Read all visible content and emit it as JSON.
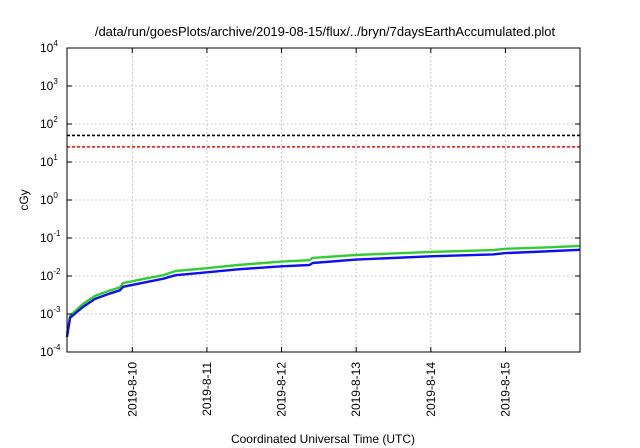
{
  "chart_data": {
    "type": "line",
    "title": "/data/run/goesPlots/archive/2019-08-15/flux/../bryn/7daysEarthAccumulated.plot",
    "xlabel": "Coordinated Universal Time (UTC)",
    "ylabel": "cGy",
    "yscale": "log",
    "ylim": [
      0.0001,
      10000
    ],
    "xlim": [
      "2019-08-09T03:00",
      "2019-08-15T23:59"
    ],
    "grid": true,
    "x_ticks": [
      "2019-8-10",
      "2019-8-11",
      "2019-8-12",
      "2019-8-13",
      "2019-8-14",
      "2019-8-15"
    ],
    "y_ticks": [
      {
        "base": "10",
        "exp": "-4",
        "value": 0.0001
      },
      {
        "base": "10",
        "exp": "-3",
        "value": 0.001
      },
      {
        "base": "10",
        "exp": "-2",
        "value": 0.01
      },
      {
        "base": "10",
        "exp": "-1",
        "value": 0.1
      },
      {
        "base": "10",
        "exp": "0",
        "value": 1
      },
      {
        "base": "10",
        "exp": "1",
        "value": 10
      },
      {
        "base": "10",
        "exp": "2",
        "value": 100
      },
      {
        "base": "10",
        "exp": "3",
        "value": 1000
      },
      {
        "base": "10",
        "exp": "4",
        "value": 10000
      }
    ],
    "hlines": [
      {
        "value": 50,
        "color": "#000000",
        "style": "dashed"
      },
      {
        "value": 25,
        "color": "#ff0000",
        "style": "dashed"
      }
    ],
    "series": [
      {
        "color": "#33cc33",
        "points": [
          [
            "2019-08-09T03:00",
            0.0003
          ],
          [
            "2019-08-09T04:00",
            0.0009
          ],
          [
            "2019-08-09T08:00",
            0.0018
          ],
          [
            "2019-08-09T12:00",
            0.003
          ],
          [
            "2019-08-09T17:00",
            0.0042
          ],
          [
            "2019-08-09T20:00",
            0.005
          ],
          [
            "2019-08-09T21:00",
            0.0065
          ],
          [
            "2019-08-10T04:00",
            0.0085
          ],
          [
            "2019-08-10T10:00",
            0.0105
          ],
          [
            "2019-08-10T12:00",
            0.012
          ],
          [
            "2019-08-10T14:00",
            0.0135
          ],
          [
            "2019-08-11T00:00",
            0.016
          ],
          [
            "2019-08-11T10:00",
            0.0195
          ],
          [
            "2019-08-12T00:00",
            0.024
          ],
          [
            "2019-08-12T09:00",
            0.026
          ],
          [
            "2019-08-12T10:00",
            0.03
          ],
          [
            "2019-08-13T00:00",
            0.036
          ],
          [
            "2019-08-14T00:00",
            0.043
          ],
          [
            "2019-08-14T20:00",
            0.048
          ],
          [
            "2019-08-15T00:00",
            0.052
          ],
          [
            "2019-08-15T12:00",
            0.056
          ],
          [
            "2019-08-15T23:59",
            0.062
          ]
        ]
      },
      {
        "color": "#1010ee",
        "points": [
          [
            "2019-08-09T03:00",
            0.00025
          ],
          [
            "2019-08-09T04:00",
            0.0008
          ],
          [
            "2019-08-09T08:00",
            0.0015
          ],
          [
            "2019-08-09T12:00",
            0.0025
          ],
          [
            "2019-08-09T17:00",
            0.0035
          ],
          [
            "2019-08-09T20:00",
            0.0042
          ],
          [
            "2019-08-09T21:00",
            0.0052
          ],
          [
            "2019-08-10T04:00",
            0.0068
          ],
          [
            "2019-08-10T10:00",
            0.0085
          ],
          [
            "2019-08-10T12:00",
            0.0095
          ],
          [
            "2019-08-10T14:00",
            0.0105
          ],
          [
            "2019-08-11T00:00",
            0.0125
          ],
          [
            "2019-08-11T10:00",
            0.015
          ],
          [
            "2019-08-12T00:00",
            0.018
          ],
          [
            "2019-08-12T09:00",
            0.0195
          ],
          [
            "2019-08-12T10:00",
            0.022
          ],
          [
            "2019-08-13T00:00",
            0.027
          ],
          [
            "2019-08-14T00:00",
            0.033
          ],
          [
            "2019-08-14T20:00",
            0.037
          ],
          [
            "2019-08-15T00:00",
            0.04
          ],
          [
            "2019-08-15T12:00",
            0.044
          ],
          [
            "2019-08-15T23:59",
            0.049
          ]
        ]
      }
    ]
  }
}
